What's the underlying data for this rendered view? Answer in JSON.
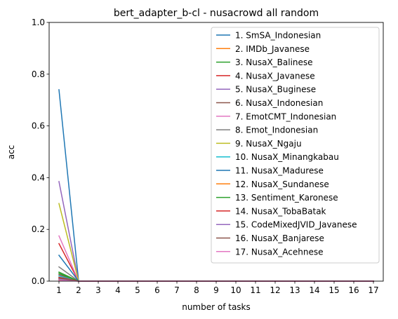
{
  "chart_data": {
    "type": "line",
    "title": "bert_adapter_b-cl - nusacrowd all random",
    "xlabel": "number of tasks",
    "ylabel": "acc",
    "xlim": [
      0.5,
      17.5
    ],
    "ylim": [
      0,
      1
    ],
    "x": [
      1,
      2,
      3,
      4,
      5,
      6,
      7,
      8,
      9,
      10,
      11,
      12,
      13,
      14,
      15,
      16,
      17
    ],
    "xticks": [
      "1",
      "2",
      "3",
      "4",
      "5",
      "6",
      "7",
      "8",
      "9",
      "10",
      "11",
      "12",
      "13",
      "14",
      "15",
      "16",
      "17"
    ],
    "yticks": [
      "0.0",
      "0.2",
      "0.4",
      "0.6",
      "0.8",
      "1.0"
    ],
    "legend_position": "right",
    "series": [
      {
        "name": "1. SmSA_Indonesian",
        "color": "#1f77b4",
        "values": [
          0.74,
          0.0,
          0.0,
          0.0,
          0.0,
          0.0,
          0.0,
          0.0,
          0.0,
          0.0,
          0.0,
          0.0,
          0.0,
          0.0,
          0.0,
          0.0,
          0.0
        ]
      },
      {
        "name": "2. IMDb_Javanese",
        "color": "#ff7f0e",
        "values": [
          0.005,
          0.0,
          0.0,
          0.0,
          0.0,
          0.0,
          0.0,
          0.0,
          0.0,
          0.0,
          0.0,
          0.0,
          0.0,
          0.0,
          0.0,
          0.0,
          0.0
        ]
      },
      {
        "name": "3. NusaX_Balinese",
        "color": "#2ca02c",
        "values": [
          0.035,
          0.0,
          0.0,
          0.0,
          0.0,
          0.0,
          0.0,
          0.0,
          0.0,
          0.0,
          0.0,
          0.0,
          0.0,
          0.0,
          0.0,
          0.0,
          0.0
        ]
      },
      {
        "name": "4. NusaX_Javanese",
        "color": "#d62728",
        "values": [
          0.145,
          0.0,
          0.0,
          0.0,
          0.0,
          0.0,
          0.0,
          0.0,
          0.0,
          0.0,
          0.0,
          0.0,
          0.0,
          0.0,
          0.0,
          0.0,
          0.0
        ]
      },
      {
        "name": "5. NusaX_Buginese",
        "color": "#9467bd",
        "values": [
          0.385,
          0.0,
          0.0,
          0.0,
          0.0,
          0.0,
          0.0,
          0.0,
          0.0,
          0.0,
          0.0,
          0.0,
          0.0,
          0.0,
          0.0,
          0.0,
          0.0
        ]
      },
      {
        "name": "6. NusaX_Indonesian",
        "color": "#8c564b",
        "values": [
          0.025,
          0.0,
          0.0,
          0.0,
          0.0,
          0.0,
          0.0,
          0.0,
          0.0,
          0.0,
          0.0,
          0.0,
          0.0,
          0.0,
          0.0,
          0.0,
          0.0
        ]
      },
      {
        "name": "7. EmotCMT_Indonesian",
        "color": "#e377c2",
        "values": [
          0.175,
          0.0,
          0.0,
          0.0,
          0.0,
          0.0,
          0.0,
          0.0,
          0.0,
          0.0,
          0.0,
          0.0,
          0.0,
          0.0,
          0.0,
          0.0,
          0.0
        ]
      },
      {
        "name": "8. Emot_Indonesian",
        "color": "#7f7f7f",
        "values": [
          0.055,
          0.0,
          0.0,
          0.0,
          0.0,
          0.0,
          0.0,
          0.0,
          0.0,
          0.0,
          0.0,
          0.0,
          0.0,
          0.0,
          0.0,
          0.0,
          0.0
        ]
      },
      {
        "name": "9. NusaX_Ngaju",
        "color": "#bcbd22",
        "values": [
          0.3,
          0.0,
          0.0,
          0.0,
          0.0,
          0.0,
          0.0,
          0.0,
          0.0,
          0.0,
          0.0,
          0.0,
          0.0,
          0.0,
          0.0,
          0.0,
          0.0
        ]
      },
      {
        "name": "10. NusaX_Minangkabau",
        "color": "#17becf",
        "values": [
          0.02,
          0.0,
          0.0,
          0.0,
          0.0,
          0.0,
          0.0,
          0.0,
          0.0,
          0.0,
          0.0,
          0.0,
          0.0,
          0.0,
          0.0,
          0.0,
          0.0
        ]
      },
      {
        "name": "11. NusaX_Madurese",
        "color": "#1f77b4",
        "values": [
          0.1,
          0.0,
          0.0,
          0.0,
          0.0,
          0.0,
          0.0,
          0.0,
          0.0,
          0.0,
          0.0,
          0.0,
          0.0,
          0.0,
          0.0,
          0.0,
          0.0
        ]
      },
      {
        "name": "12. NusaX_Sundanese",
        "color": "#ff7f0e",
        "values": [
          0.01,
          0.0,
          0.0,
          0.0,
          0.0,
          0.0,
          0.0,
          0.0,
          0.0,
          0.0,
          0.0,
          0.0,
          0.0,
          0.0,
          0.0,
          0.0,
          0.0
        ]
      },
      {
        "name": "13. Sentiment_Karonese",
        "color": "#2ca02c",
        "values": [
          0.03,
          0.0,
          0.0,
          0.0,
          0.0,
          0.0,
          0.0,
          0.0,
          0.0,
          0.0,
          0.0,
          0.0,
          0.0,
          0.0,
          0.0,
          0.0,
          0.0
        ]
      },
      {
        "name": "14. NusaX_TobaBatak",
        "color": "#d62728",
        "values": [
          0.015,
          0.0,
          0.0,
          0.0,
          0.0,
          0.0,
          0.0,
          0.0,
          0.0,
          0.0,
          0.0,
          0.0,
          0.0,
          0.0,
          0.0,
          0.0,
          0.0
        ]
      },
      {
        "name": "15. CodeMixedJVID_Javanese",
        "color": "#9467bd",
        "values": [
          0.008,
          0.0,
          0.0,
          0.0,
          0.0,
          0.0,
          0.0,
          0.0,
          0.0,
          0.0,
          0.0,
          0.0,
          0.0,
          0.0,
          0.0,
          0.0,
          0.0
        ]
      },
      {
        "name": "16. NusaX_Banjarese",
        "color": "#8c564b",
        "values": [
          0.012,
          0.0,
          0.0,
          0.0,
          0.0,
          0.0,
          0.0,
          0.0,
          0.0,
          0.0,
          0.0,
          0.0,
          0.0,
          0.0,
          0.0,
          0.0,
          0.0
        ]
      },
      {
        "name": "17. NusaX_Acehnese",
        "color": "#e377c2",
        "values": [
          0.003,
          0.0,
          0.0,
          0.0,
          0.0,
          0.0,
          0.0,
          0.0,
          0.0,
          0.0,
          0.0,
          0.0,
          0.0,
          0.0,
          0.0,
          0.0,
          0.0
        ]
      }
    ]
  }
}
